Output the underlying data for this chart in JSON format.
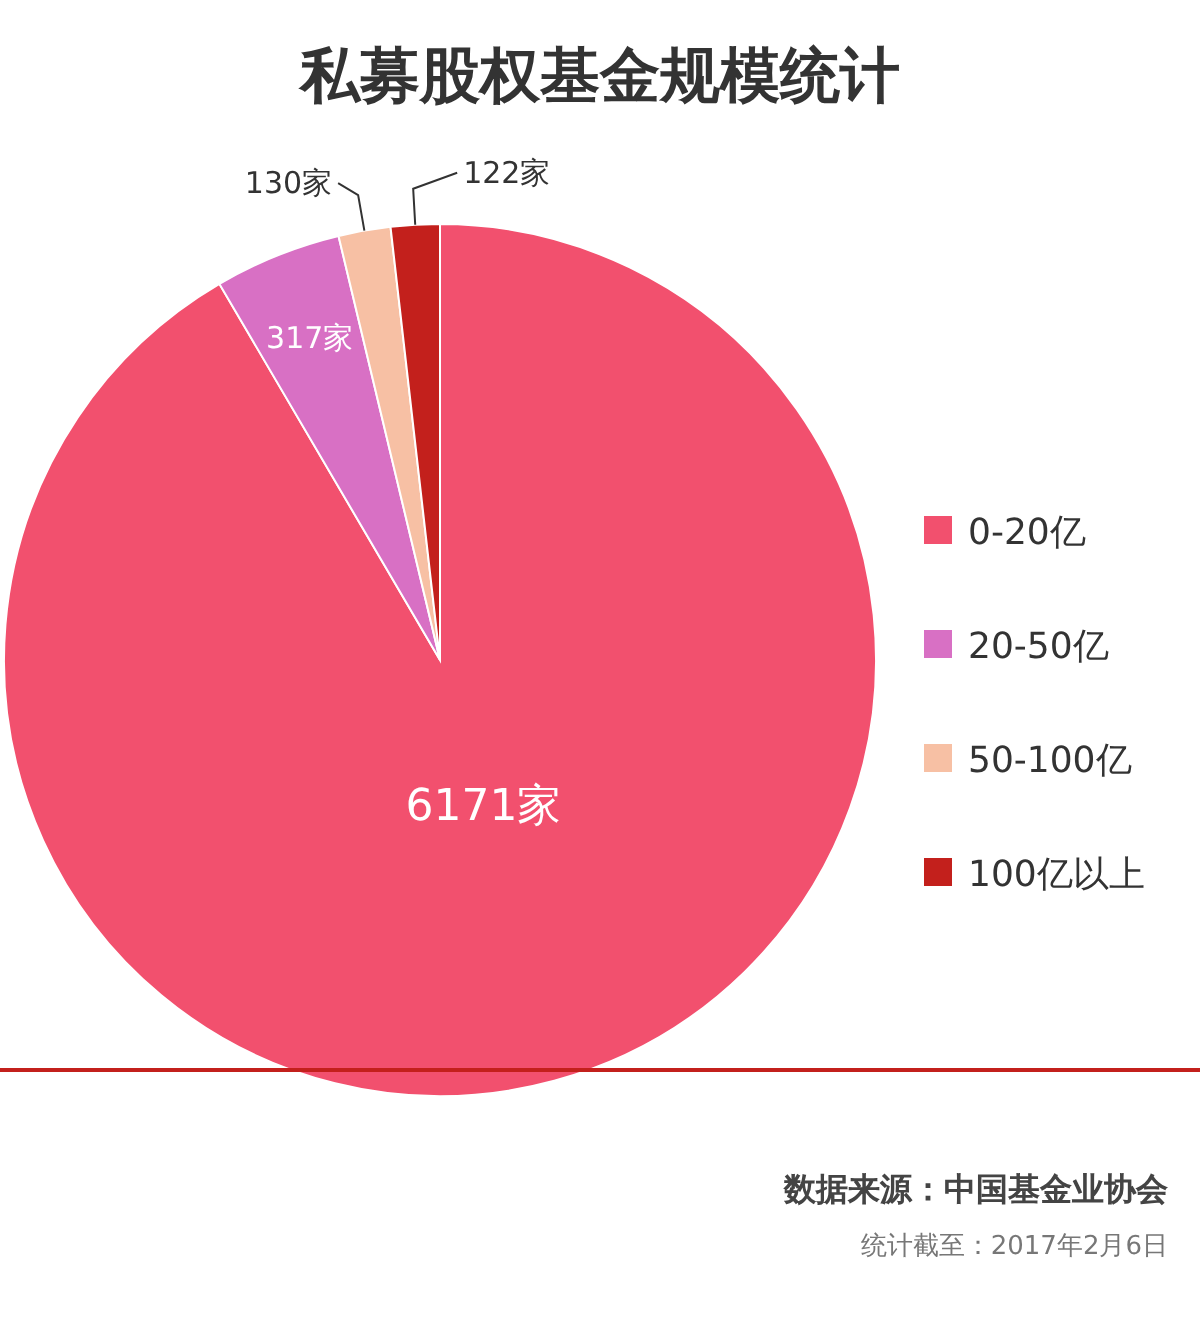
{
  "chart_data": {
    "type": "pie",
    "title": "私募股权基金规模统计",
    "categories": [
      "0-20亿",
      "20-50亿",
      "50-100亿",
      "100亿以上"
    ],
    "values": [
      6171,
      317,
      130,
      122
    ],
    "colors": [
      "#f2506e",
      "#d870c4",
      "#f7c0a4",
      "#c3201c"
    ],
    "value_labels": [
      "6171家",
      "317家",
      "130家",
      "122家"
    ],
    "legend": "right",
    "annotations": [
      "数据来源：中国基金业协会",
      "统计截至：2017年2月6日"
    ]
  }
}
